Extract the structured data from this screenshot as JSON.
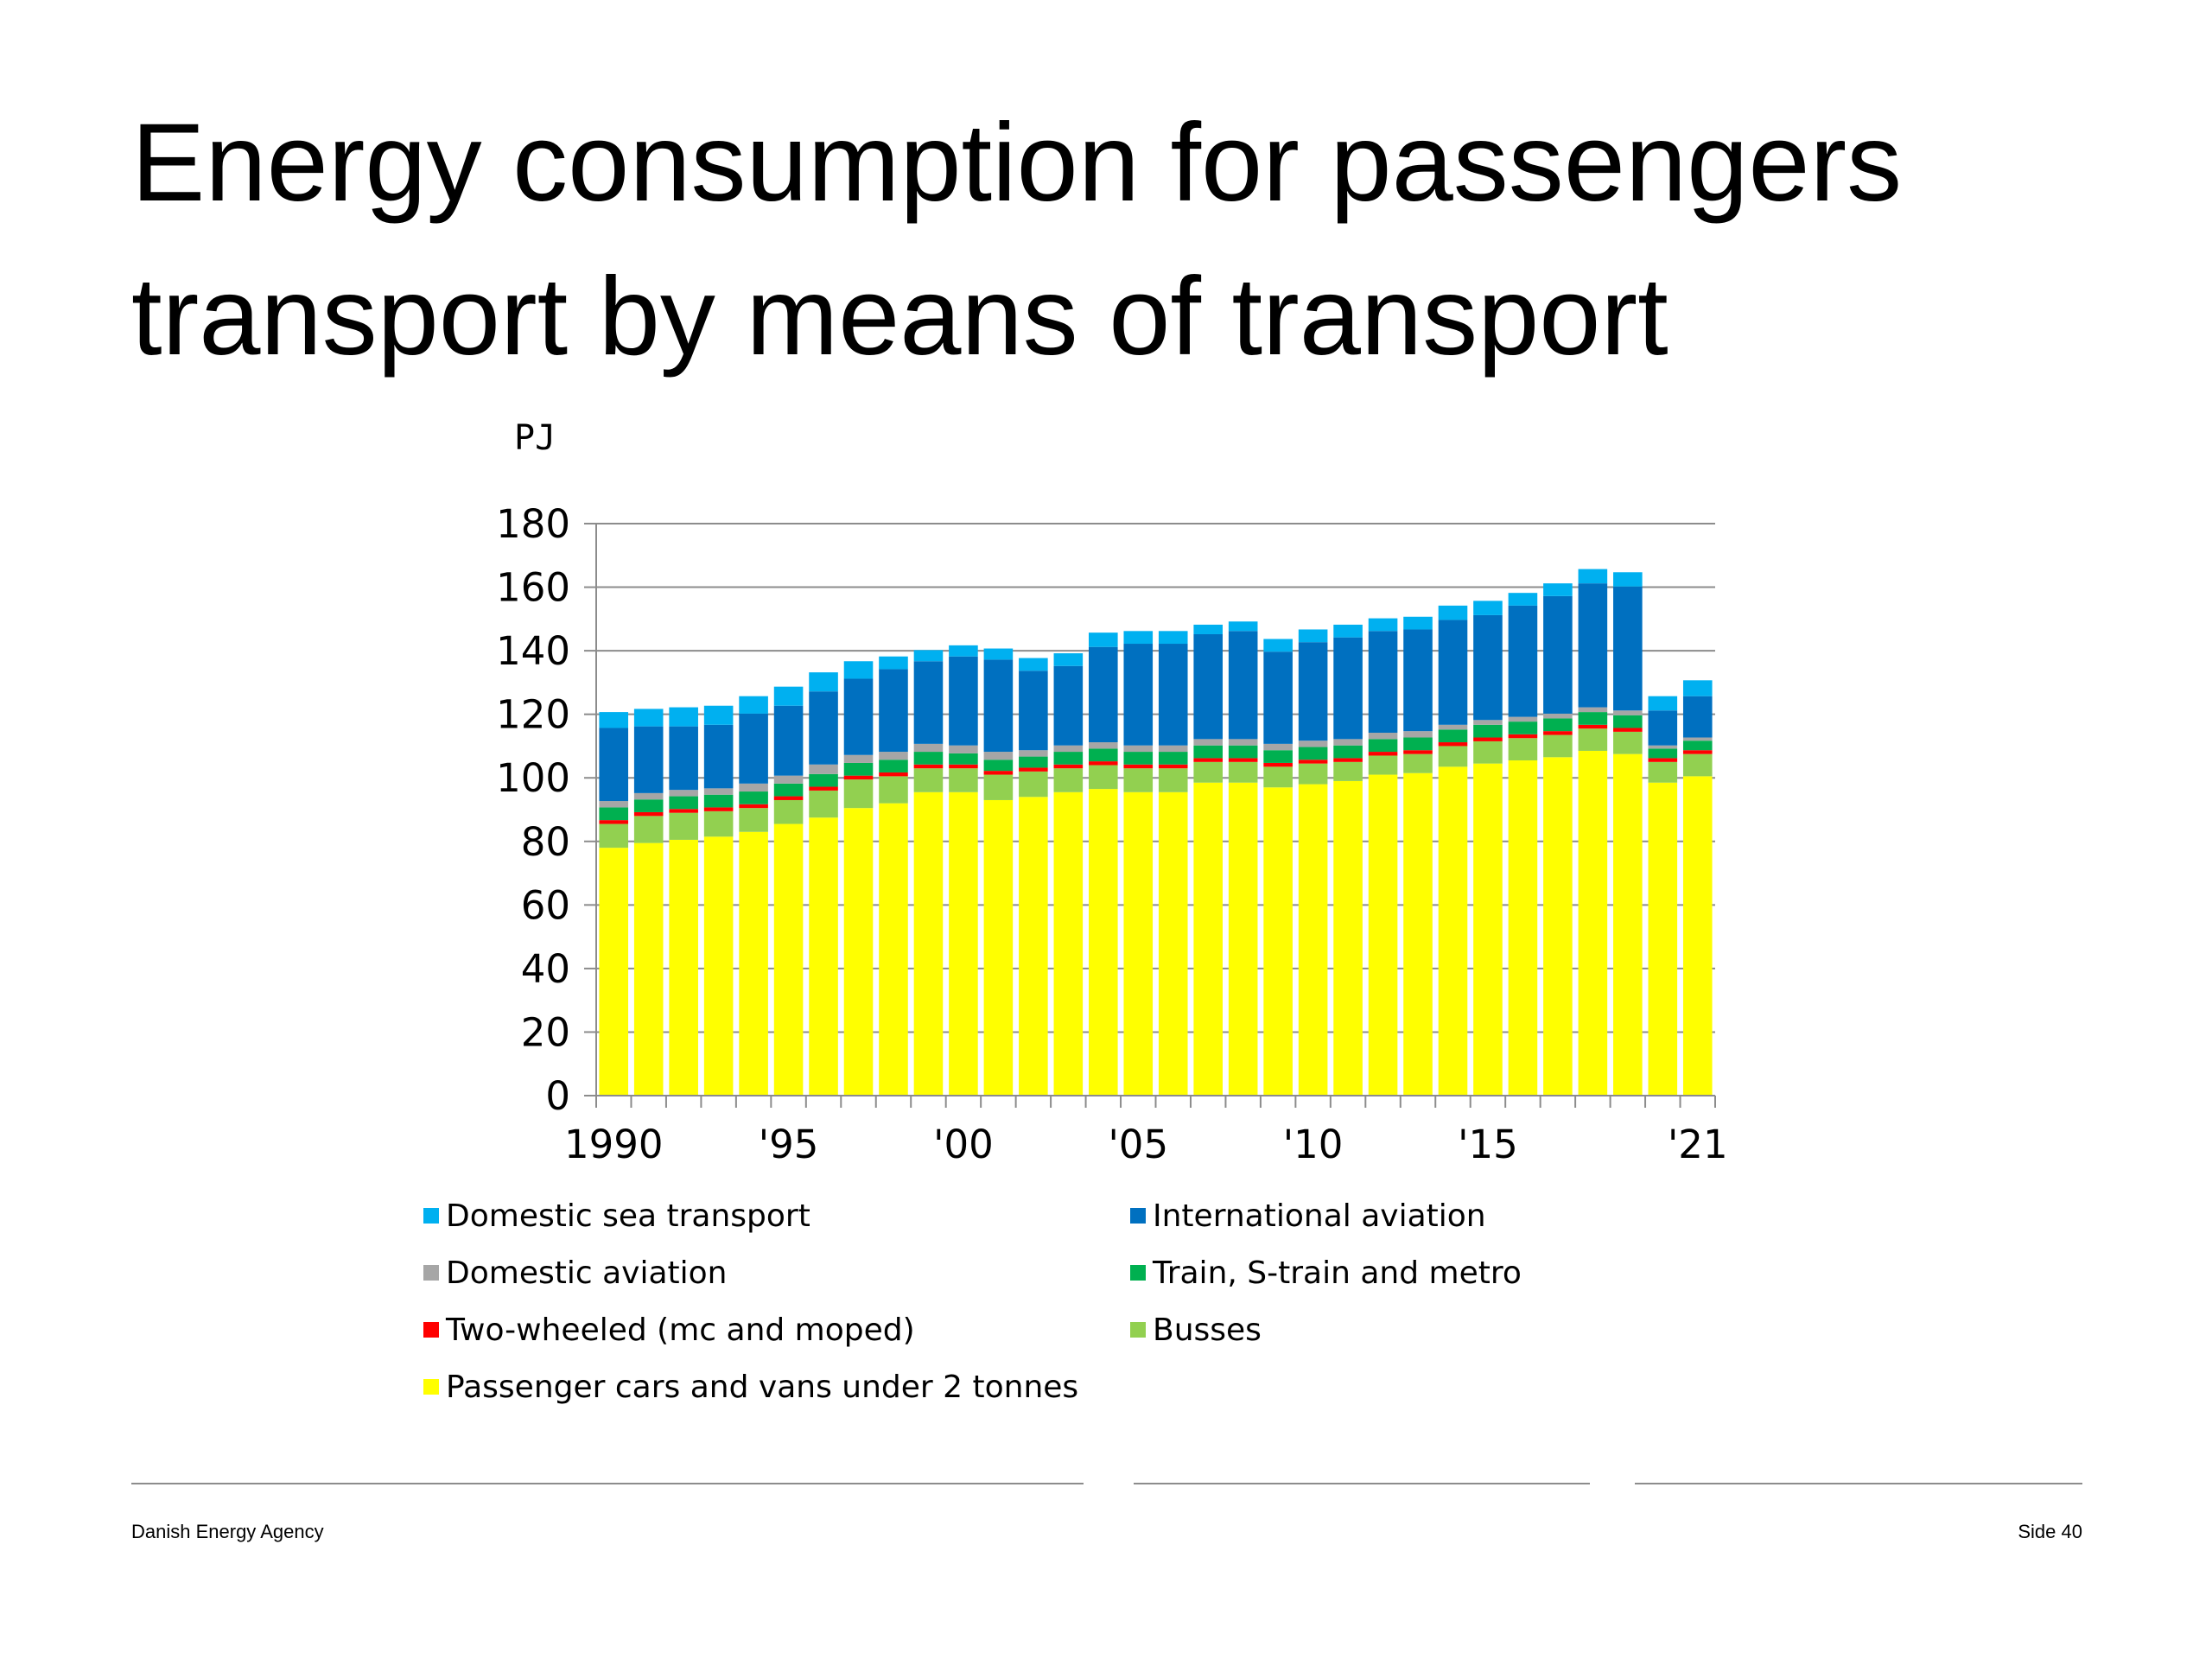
{
  "slide": {
    "title_line1": "Energy consumption for passengers",
    "title_line2": "transport by means of transport",
    "footer_left": "Danish Energy Agency",
    "footer_right": "Side 40"
  },
  "chart_data": {
    "type": "bar",
    "stacked": true,
    "ylabel": "PJ",
    "ylim": [
      0,
      180
    ],
    "yticks": [
      0,
      20,
      40,
      60,
      80,
      100,
      120,
      140,
      160,
      180
    ],
    "grid": true,
    "legend_position": "bottom",
    "x": [
      1990,
      1991,
      1992,
      1993,
      1994,
      1995,
      1996,
      1997,
      1998,
      1999,
      2000,
      2001,
      2002,
      2003,
      2004,
      2005,
      2006,
      2007,
      2008,
      2009,
      2010,
      2011,
      2012,
      2013,
      2014,
      2015,
      2016,
      2017,
      2018,
      2019,
      2020,
      2021
    ],
    "xtick_labels": [
      {
        "x": 1990,
        "label": "1990"
      },
      {
        "x": 1995,
        "label": "'95"
      },
      {
        "x": 2000,
        "label": "'00"
      },
      {
        "x": 2005,
        "label": "'05"
      },
      {
        "x": 2010,
        "label": "'10"
      },
      {
        "x": 2015,
        "label": "'15"
      },
      {
        "x": 2021,
        "label": "'21"
      }
    ],
    "series": [
      {
        "name": "Passenger cars and vans under 2 tonnes",
        "color": "#ffff00",
        "values": [
          78,
          79.5,
          80.5,
          81.5,
          83,
          85.5,
          87.5,
          90.5,
          92,
          95.5,
          95.5,
          93,
          94,
          95.5,
          96.5,
          95.5,
          95.5,
          98.5,
          98.5,
          97,
          98,
          99,
          101,
          101.5,
          103.5,
          104.5,
          105.5,
          106.5,
          108.5,
          107.5,
          98.5,
          100.5
        ]
      },
      {
        "name": "Busses",
        "color": "#92d050",
        "values": [
          7.5,
          8.5,
          8.5,
          8,
          7.5,
          7.5,
          8.5,
          9,
          8.5,
          7.5,
          7.5,
          8,
          8,
          7.5,
          7.5,
          7.5,
          7.5,
          6.5,
          6.5,
          6.5,
          6.5,
          6,
          6,
          6,
          6.5,
          7,
          7,
          7,
          7,
          7,
          6.5,
          7
        ]
      },
      {
        "name": "Two-wheeled (mc and moped)",
        "color": "#ff0000",
        "values": [
          1.2,
          1.2,
          1.2,
          1.2,
          1.2,
          1.2,
          1.2,
          1.2,
          1.2,
          1.2,
          1.2,
          1.2,
          1.2,
          1.2,
          1.2,
          1.2,
          1.2,
          1.2,
          1.2,
          1.2,
          1.2,
          1.2,
          1.2,
          1.2,
          1.2,
          1.2,
          1.2,
          1.2,
          1.2,
          1.2,
          1.2,
          1.2
        ]
      },
      {
        "name": "Train, S-train and metro",
        "color": "#00b050",
        "values": [
          4,
          4,
          4,
          4,
          4,
          4,
          4,
          4,
          4,
          4,
          3.5,
          3.5,
          3.5,
          4,
          4,
          4,
          4,
          4,
          4,
          4,
          4,
          4,
          4,
          4,
          4,
          4,
          4,
          4,
          4,
          4,
          3,
          3
        ]
      },
      {
        "name": "Domestic aviation",
        "color": "#a6a6a6",
        "values": [
          2,
          2,
          2,
          2,
          2.5,
          2.5,
          3,
          2.5,
          2.5,
          2.5,
          2.5,
          2.5,
          2,
          2,
          2,
          2,
          2,
          2,
          2,
          2,
          2,
          2,
          2,
          2,
          1.5,
          1.5,
          1.5,
          1.5,
          1.5,
          1.5,
          1,
          1
        ]
      },
      {
        "name": "International aviation",
        "color": "#0070c0",
        "values": [
          23,
          21,
          20,
          20,
          22,
          22,
          23,
          24,
          26,
          26,
          28,
          29,
          25,
          25,
          30,
          32,
          32,
          33,
          34,
          29,
          31,
          32,
          32,
          32,
          33,
          33,
          35,
          37,
          39,
          39,
          11,
          13
        ]
      },
      {
        "name": "Domestic sea transport",
        "color": "#00b0f0",
        "values": [
          5,
          5.5,
          6,
          6,
          5.5,
          6,
          6,
          5.5,
          4,
          3.5,
          3.5,
          3.5,
          4,
          4,
          4.5,
          4,
          4,
          3,
          3,
          4,
          4,
          4,
          4,
          4,
          4.5,
          4.5,
          4,
          4,
          4.5,
          4.5,
          4.5,
          5
        ]
      }
    ],
    "legend_order": [
      "Domestic sea transport",
      "International aviation",
      "Domestic aviation",
      "Train, S-train and metro",
      "Two-wheeled (mc and moped)",
      "Busses",
      "Passenger cars and vans under 2 tonnes"
    ]
  }
}
